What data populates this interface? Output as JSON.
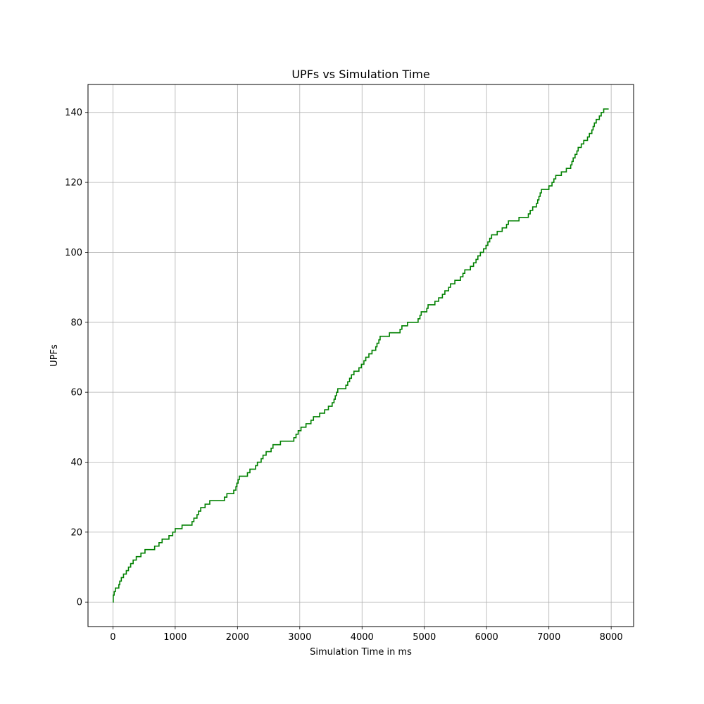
{
  "chart_data": {
    "type": "line",
    "title": "UPFs vs Simulation Time",
    "xlabel": "Simulation Time in ms",
    "ylabel": "UPFs",
    "xlim": [
      -400,
      8360
    ],
    "ylim": [
      -7,
      148
    ],
    "xticks": [
      0,
      1000,
      2000,
      3000,
      4000,
      5000,
      6000,
      7000,
      8000
    ],
    "yticks": [
      0,
      20,
      40,
      60,
      80,
      100,
      120,
      140
    ],
    "grid": true,
    "line_style": "step",
    "series": [
      {
        "color": "#008000",
        "points": [
          [
            0,
            0
          ],
          [
            5,
            2
          ],
          [
            20,
            3
          ],
          [
            40,
            4
          ],
          [
            95,
            5
          ],
          [
            110,
            6
          ],
          [
            135,
            7
          ],
          [
            170,
            8
          ],
          [
            215,
            9
          ],
          [
            250,
            10
          ],
          [
            285,
            11
          ],
          [
            325,
            12
          ],
          [
            375,
            13
          ],
          [
            450,
            14
          ],
          [
            515,
            15
          ],
          [
            670,
            16
          ],
          [
            740,
            17
          ],
          [
            790,
            18
          ],
          [
            900,
            19
          ],
          [
            960,
            20
          ],
          [
            1000,
            21
          ],
          [
            1110,
            22
          ],
          [
            1270,
            23
          ],
          [
            1300,
            24
          ],
          [
            1350,
            25
          ],
          [
            1375,
            26
          ],
          [
            1410,
            27
          ],
          [
            1480,
            28
          ],
          [
            1555,
            29
          ],
          [
            1790,
            30
          ],
          [
            1830,
            31
          ],
          [
            1940,
            32
          ],
          [
            1975,
            33
          ],
          [
            1990,
            34
          ],
          [
            2010,
            35
          ],
          [
            2030,
            36
          ],
          [
            2160,
            37
          ],
          [
            2200,
            38
          ],
          [
            2290,
            39
          ],
          [
            2320,
            40
          ],
          [
            2380,
            41
          ],
          [
            2410,
            42
          ],
          [
            2460,
            43
          ],
          [
            2540,
            44
          ],
          [
            2570,
            45
          ],
          [
            2690,
            46
          ],
          [
            2905,
            47
          ],
          [
            2940,
            48
          ],
          [
            2975,
            49
          ],
          [
            3020,
            50
          ],
          [
            3100,
            51
          ],
          [
            3180,
            52
          ],
          [
            3220,
            53
          ],
          [
            3320,
            54
          ],
          [
            3400,
            55
          ],
          [
            3460,
            56
          ],
          [
            3520,
            57
          ],
          [
            3550,
            58
          ],
          [
            3570,
            59
          ],
          [
            3590,
            60
          ],
          [
            3610,
            61
          ],
          [
            3740,
            62
          ],
          [
            3770,
            63
          ],
          [
            3800,
            64
          ],
          [
            3830,
            65
          ],
          [
            3870,
            66
          ],
          [
            3950,
            67
          ],
          [
            3990,
            68
          ],
          [
            4030,
            69
          ],
          [
            4060,
            70
          ],
          [
            4110,
            71
          ],
          [
            4160,
            72
          ],
          [
            4220,
            73
          ],
          [
            4240,
            74
          ],
          [
            4270,
            75
          ],
          [
            4290,
            76
          ],
          [
            4440,
            77
          ],
          [
            4610,
            78
          ],
          [
            4640,
            79
          ],
          [
            4730,
            80
          ],
          [
            4900,
            81
          ],
          [
            4930,
            82
          ],
          [
            4950,
            83
          ],
          [
            5040,
            84
          ],
          [
            5060,
            85
          ],
          [
            5170,
            86
          ],
          [
            5230,
            87
          ],
          [
            5290,
            88
          ],
          [
            5330,
            89
          ],
          [
            5390,
            90
          ],
          [
            5420,
            91
          ],
          [
            5490,
            92
          ],
          [
            5580,
            93
          ],
          [
            5620,
            94
          ],
          [
            5650,
            95
          ],
          [
            5740,
            96
          ],
          [
            5790,
            97
          ],
          [
            5830,
            98
          ],
          [
            5860,
            99
          ],
          [
            5900,
            100
          ],
          [
            5950,
            101
          ],
          [
            5990,
            102
          ],
          [
            6020,
            103
          ],
          [
            6050,
            104
          ],
          [
            6080,
            105
          ],
          [
            6170,
            106
          ],
          [
            6250,
            107
          ],
          [
            6320,
            108
          ],
          [
            6350,
            109
          ],
          [
            6520,
            110
          ],
          [
            6670,
            111
          ],
          [
            6700,
            112
          ],
          [
            6740,
            113
          ],
          [
            6800,
            114
          ],
          [
            6820,
            115
          ],
          [
            6840,
            116
          ],
          [
            6860,
            117
          ],
          [
            6880,
            118
          ],
          [
            7000,
            119
          ],
          [
            7050,
            120
          ],
          [
            7080,
            121
          ],
          [
            7110,
            122
          ],
          [
            7200,
            123
          ],
          [
            7280,
            124
          ],
          [
            7350,
            125
          ],
          [
            7370,
            126
          ],
          [
            7390,
            127
          ],
          [
            7420,
            128
          ],
          [
            7450,
            129
          ],
          [
            7470,
            130
          ],
          [
            7520,
            131
          ],
          [
            7560,
            132
          ],
          [
            7620,
            133
          ],
          [
            7650,
            134
          ],
          [
            7690,
            135
          ],
          [
            7710,
            136
          ],
          [
            7730,
            137
          ],
          [
            7760,
            138
          ],
          [
            7810,
            139
          ],
          [
            7840,
            140
          ],
          [
            7880,
            141
          ],
          [
            7960,
            141
          ]
        ]
      }
    ]
  }
}
